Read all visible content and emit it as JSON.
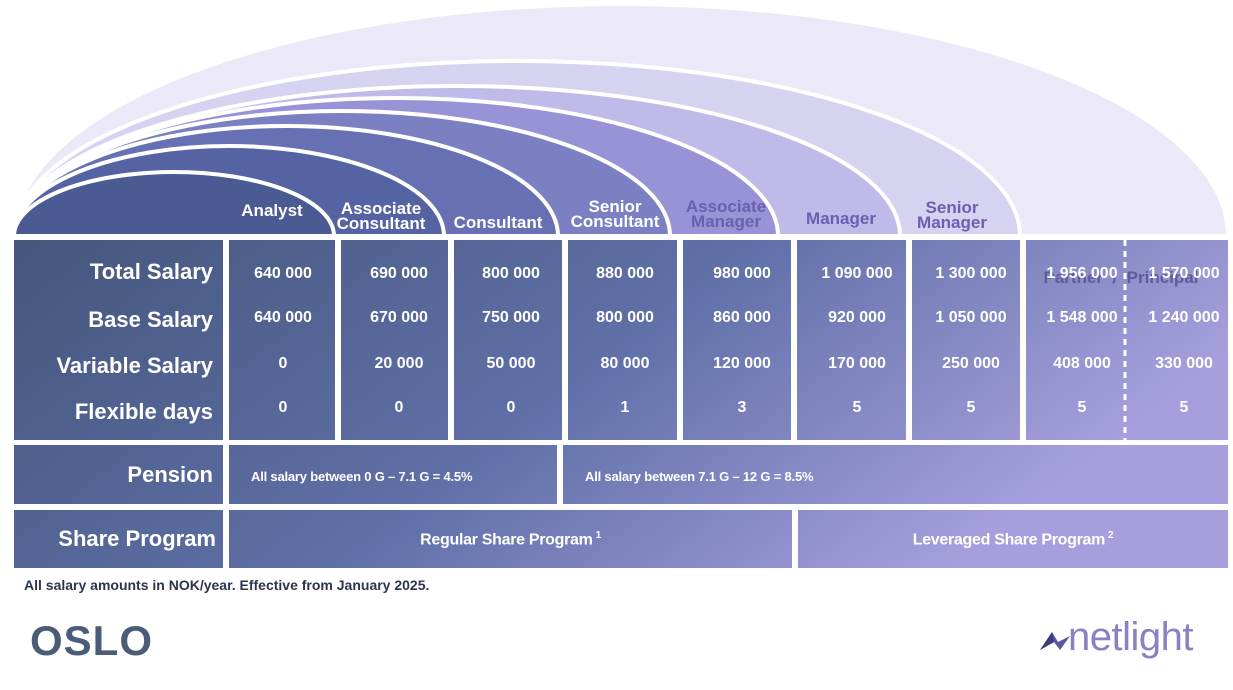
{
  "levels": [
    {
      "line1": "",
      "line2": "Analyst",
      "color": "#ffffff"
    },
    {
      "line1": "Associate",
      "line2": "Consultant",
      "color": "#ffffff"
    },
    {
      "line1": "",
      "line2": "Consultant",
      "color": "#ffffff"
    },
    {
      "line1": "Senior",
      "line2": "Consultant",
      "color": "#ffffff"
    },
    {
      "line1": "Associate",
      "line2": "Manager",
      "color": "#6a5fb0"
    },
    {
      "line1": "",
      "line2": "Manager",
      "color": "#6a5fb0"
    },
    {
      "line1": "Senior",
      "line2": "Manager",
      "color": "#6a5fb0"
    },
    {
      "line1": "",
      "line2": "Partner  /  Principal",
      "color": "#5f5a9e"
    }
  ],
  "row_labels": {
    "total": "Total Salary",
    "base": "Base Salary",
    "variable": "Variable Salary",
    "flex": "Flexible days",
    "pension": "Pension",
    "share": "Share Program"
  },
  "values": {
    "total": [
      "640 000",
      "690 000",
      "800 000",
      "880 000",
      "980 000",
      "1 090 000",
      "1 300 000",
      "1 956 000",
      "1 570 000"
    ],
    "base": [
      "640 000",
      "670 000",
      "750 000",
      "800 000",
      "860 000",
      "920 000",
      "1 050 000",
      "1 548 000",
      "1 240 000"
    ],
    "variable": [
      "0",
      "20 000",
      "50 000",
      "80 000",
      "120 000",
      "170 000",
      "250 000",
      "408 000",
      "330 000"
    ],
    "flex": [
      "0",
      "0",
      "0",
      "1",
      "3",
      "5",
      "5",
      "5",
      "5"
    ]
  },
  "pension": {
    "low": "All salary between 0 G – 7.1 G = 4.5%",
    "high": "All salary between 7.1 G – 12 G = 8.5%"
  },
  "share": {
    "regular": "Regular Share Program",
    "regular_note": "1",
    "leveraged": "Leveraged Share Program",
    "leveraged_note": "2"
  },
  "footnote": "All salary amounts in NOK/year. Effective from January 2025.",
  "city": "OSLO",
  "logo": "netlight",
  "colors": {
    "dark": "#46587f",
    "light": "#a49ddc",
    "arch_light": "#e8e6f8",
    "label_dark": "#ffffff",
    "label_purple": "#6a5fb0"
  }
}
